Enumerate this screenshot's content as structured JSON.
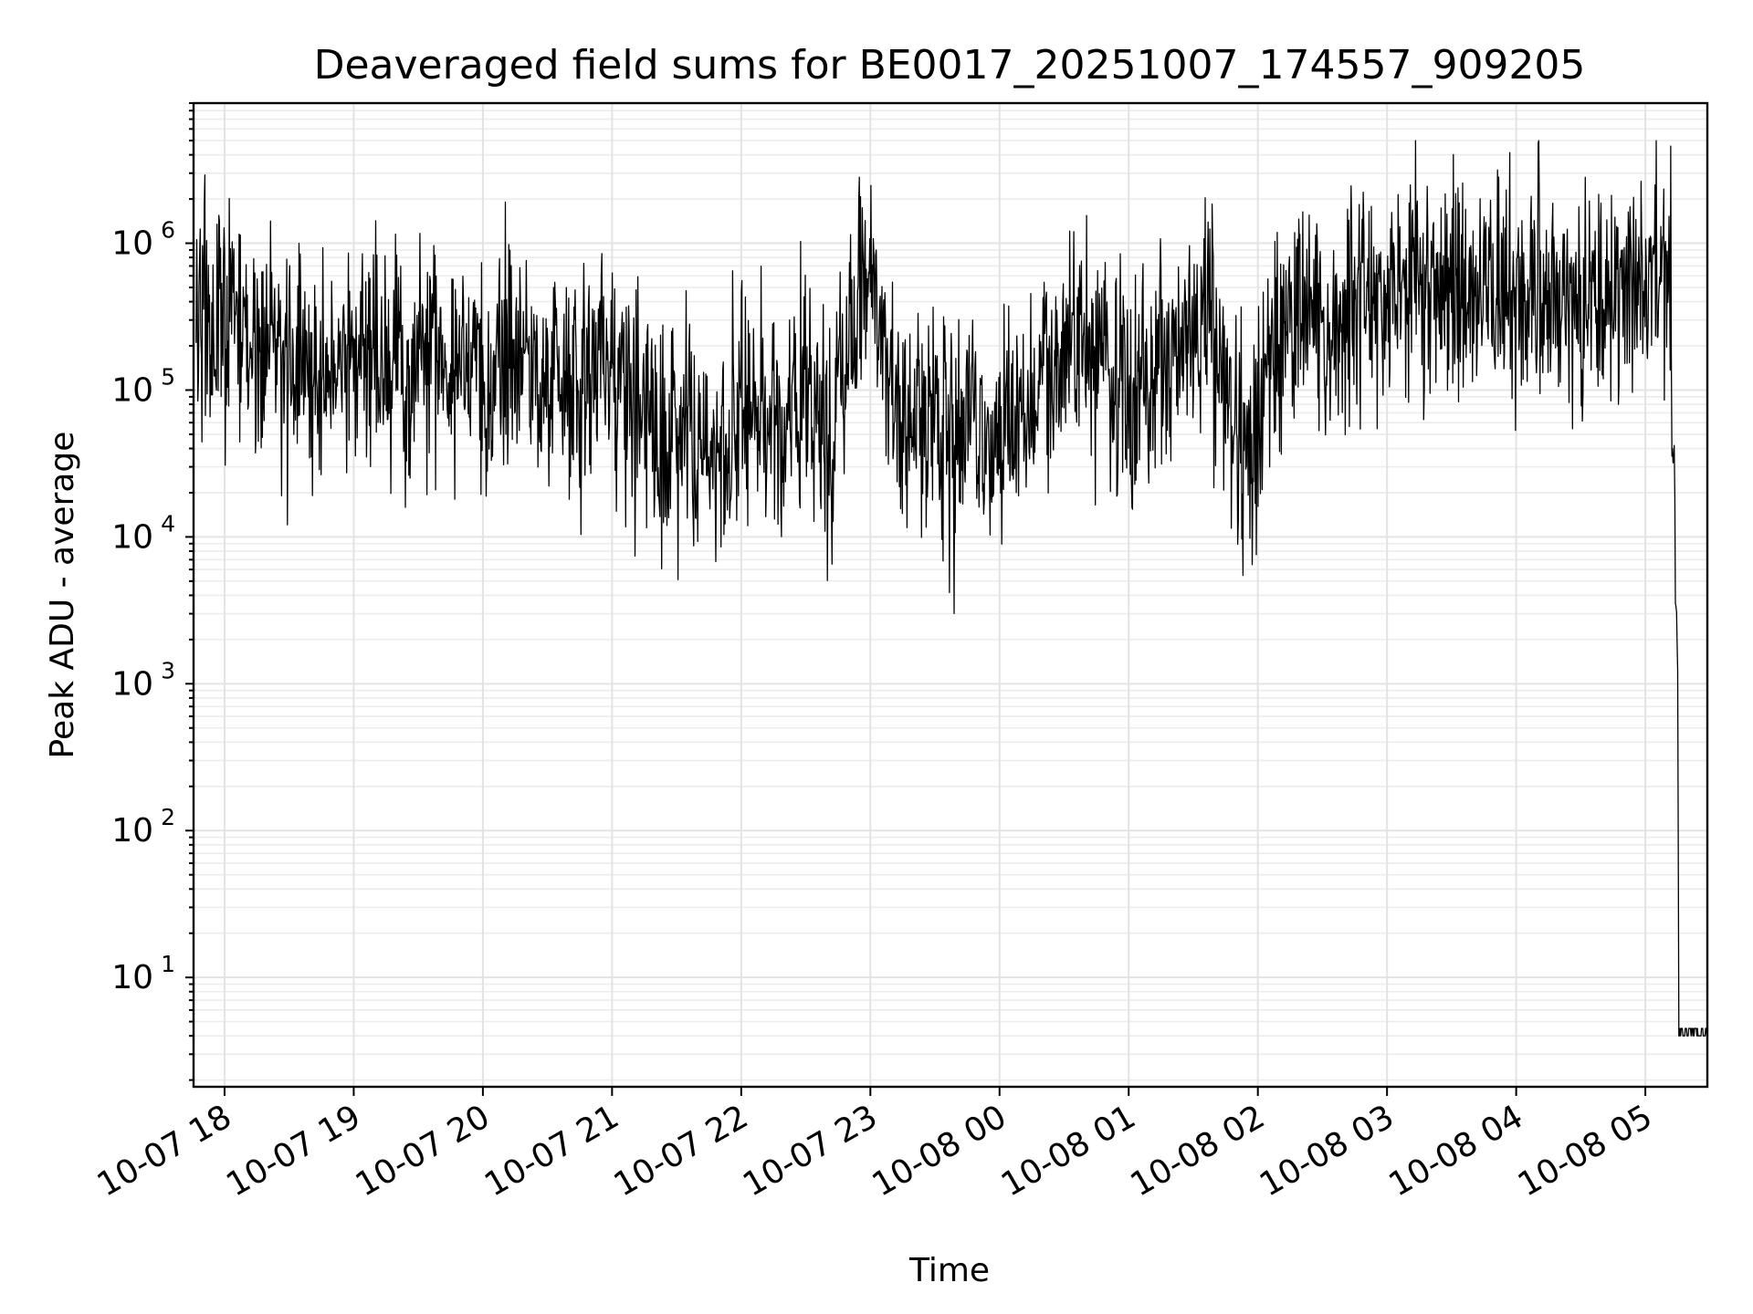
{
  "chart_data": {
    "type": "line",
    "title": "Deaveraged field sums for BE0017_20251007_174557_909205",
    "xlabel": "Time",
    "ylabel": "Peak ADU - average",
    "yscale": "log",
    "ylim": [
      1.8,
      9000000
    ],
    "xlim_hours": [
      -0.24,
      11.48
    ],
    "grid": true,
    "x_ticks": [
      {
        "hour": 0,
        "label": "10-07 18"
      },
      {
        "hour": 1,
        "label": "10-07 19"
      },
      {
        "hour": 2,
        "label": "10-07 20"
      },
      {
        "hour": 3,
        "label": "10-07 21"
      },
      {
        "hour": 4,
        "label": "10-07 22"
      },
      {
        "hour": 5,
        "label": "10-07 23"
      },
      {
        "hour": 6,
        "label": "10-08 00"
      },
      {
        "hour": 7,
        "label": "10-08 01"
      },
      {
        "hour": 8,
        "label": "10-08 02"
      },
      {
        "hour": 9,
        "label": "10-08 03"
      },
      {
        "hour": 10,
        "label": "10-08 04"
      },
      {
        "hour": 11,
        "label": "10-08 05"
      }
    ],
    "y_ticks": [
      {
        "value": 10,
        "base": "10",
        "exp": "1"
      },
      {
        "value": 100,
        "base": "10",
        "exp": "2"
      },
      {
        "value": 1000,
        "base": "10",
        "exp": "3"
      },
      {
        "value": 10000,
        "base": "10",
        "exp": "4"
      },
      {
        "value": 100000,
        "base": "10",
        "exp": "5"
      },
      {
        "value": 1000000,
        "base": "10",
        "exp": "6"
      }
    ],
    "series": [
      {
        "name": "Peak ADU - average",
        "color": "#000000",
        "x_hours": [
          -0.22,
          0.0,
          0.2,
          0.3,
          0.5,
          0.7,
          1.0,
          1.2,
          1.4,
          1.5,
          1.7,
          2.0,
          2.3,
          2.5,
          2.7,
          2.9,
          3.0,
          3.1,
          3.2,
          3.3,
          3.4,
          3.45,
          3.5,
          3.6,
          3.8,
          3.95,
          4.0,
          4.1,
          4.2,
          4.3,
          4.5,
          4.7,
          4.8,
          4.9,
          5.0,
          5.1,
          5.15,
          5.2,
          5.25,
          5.3,
          5.4,
          5.6,
          5.8,
          6.0,
          6.2,
          6.4,
          6.6,
          6.8,
          6.9,
          7.0,
          7.2,
          7.4,
          7.6,
          7.7,
          7.8,
          7.9,
          8.0,
          8.1,
          8.3,
          8.5,
          8.7,
          8.9,
          9.0,
          9.2,
          9.4,
          9.6,
          9.8,
          10.0,
          10.2,
          10.4,
          10.6,
          10.8,
          10.9,
          11.0,
          11.05,
          11.1,
          11.15,
          11.2,
          11.22,
          11.25,
          11.26,
          11.3,
          11.48
        ],
        "y_values": [
          420000,
          280000,
          220000,
          170000,
          160000,
          140000,
          140000,
          150000,
          160000,
          170000,
          150000,
          130000,
          150000,
          120000,
          130000,
          160000,
          140000,
          100000,
          80000,
          60000,
          40000,
          45000,
          50000,
          45000,
          35000,
          50000,
          60000,
          70000,
          60000,
          50000,
          110000,
          60000,
          160000,
          300000,
          500000,
          300000,
          150000,
          120000,
          50000,
          40000,
          60000,
          50000,
          70000,
          40000,
          80000,
          150000,
          250000,
          200000,
          120000,
          90000,
          200000,
          180000,
          300000,
          150000,
          60000,
          50000,
          40000,
          200000,
          300000,
          350000,
          400000,
          400000,
          450000,
          500000,
          450000,
          500000,
          550000,
          500000,
          500000,
          450000,
          380000,
          400000,
          500000,
          600000,
          700000,
          800000,
          550000,
          450000,
          60000,
          1000,
          4,
          4,
          4
        ]
      }
    ],
    "annotations": [
      "noisy trace between 1e4 and 5e6, collapses to about 4 near 10-08 05"
    ]
  }
}
